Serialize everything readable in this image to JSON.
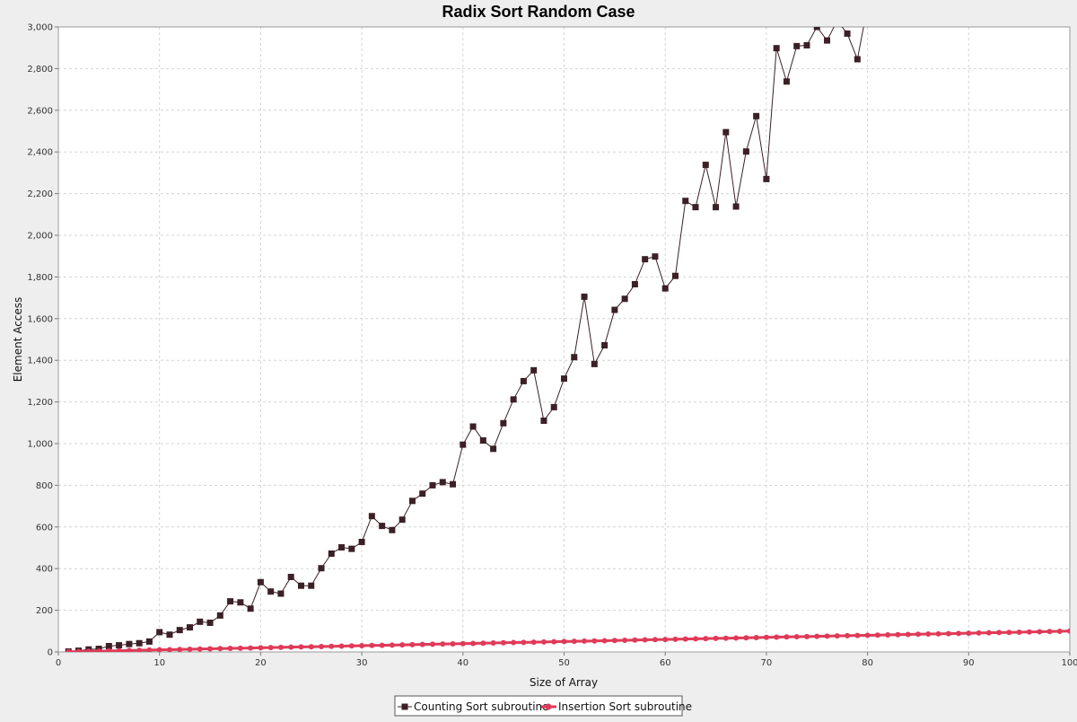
{
  "chart_data": {
    "type": "line",
    "title": "Radix Sort Random Case",
    "xlabel": "Size of Array",
    "ylabel": "Element Access",
    "xlim": [
      0,
      100
    ],
    "ylim": [
      0,
      3000
    ],
    "x_ticks": [
      0,
      10,
      20,
      30,
      40,
      50,
      60,
      70,
      80,
      90,
      100
    ],
    "y_ticks": [
      0,
      200,
      400,
      600,
      800,
      1000,
      1200,
      1400,
      1600,
      1800,
      2000,
      2200,
      2400,
      2600,
      2800,
      3000
    ],
    "y_tick_labels": [
      "0",
      "200",
      "400",
      "600",
      "800",
      "1,000",
      "1,200",
      "1,400",
      "1,600",
      "1,800",
      "2,000",
      "2,200",
      "2,400",
      "2,600",
      "2,800",
      "3,000"
    ],
    "grid": true,
    "legend_position": "bottom",
    "series": [
      {
        "name": "Counting Sort subroutine",
        "color": "#3b2026",
        "marker": "square",
        "x": [
          1,
          2,
          3,
          4,
          5,
          6,
          7,
          8,
          9,
          10,
          11,
          12,
          13,
          14,
          15,
          16,
          17,
          18,
          19,
          20,
          21,
          22,
          23,
          24,
          25,
          26,
          27,
          28,
          29,
          30,
          31,
          32,
          33,
          34,
          35,
          36,
          37,
          38,
          39,
          40,
          41,
          42,
          43,
          44,
          45,
          46,
          47,
          48,
          49,
          50,
          51,
          52,
          53,
          54,
          55,
          56,
          57,
          58,
          59,
          60,
          61,
          62,
          63,
          64,
          65,
          66,
          67,
          68,
          69,
          70,
          71,
          72,
          73,
          74,
          75,
          76,
          77,
          78,
          79,
          80
        ],
        "values": [
          2,
          6,
          12,
          15,
          28,
          32,
          38,
          42,
          50,
          95,
          83,
          105,
          118,
          145,
          140,
          175,
          243,
          238,
          208,
          335,
          290,
          280,
          360,
          318,
          318,
          402,
          472,
          502,
          495,
          528,
          652,
          605,
          585,
          635,
          725,
          760,
          800,
          815,
          805,
          995,
          1082,
          1015,
          975,
          1098,
          1212,
          1300,
          1352,
          1110,
          1175,
          1312,
          1415,
          1705,
          1382,
          1472,
          1642,
          1695,
          1765,
          1885,
          1898,
          1745,
          1805,
          2165,
          2135,
          2338,
          2135,
          2495,
          2138,
          2402,
          2572,
          2270,
          2898,
          2738,
          2908,
          2912,
          3000,
          2935,
          3030,
          2968,
          2845,
          3100
        ]
      },
      {
        "name": "Insertion Sort subroutine",
        "color": "#e03a58",
        "marker": "circle",
        "x": [
          1,
          2,
          3,
          4,
          5,
          6,
          7,
          8,
          9,
          10,
          11,
          12,
          13,
          14,
          15,
          16,
          17,
          18,
          19,
          20,
          21,
          22,
          23,
          24,
          25,
          26,
          27,
          28,
          29,
          30,
          31,
          32,
          33,
          34,
          35,
          36,
          37,
          38,
          39,
          40,
          41,
          42,
          43,
          44,
          45,
          46,
          47,
          48,
          49,
          50,
          51,
          52,
          53,
          54,
          55,
          56,
          57,
          58,
          59,
          60,
          61,
          62,
          63,
          64,
          65,
          66,
          67,
          68,
          69,
          70,
          71,
          72,
          73,
          74,
          75,
          76,
          77,
          78,
          79,
          80,
          81,
          82,
          83,
          84,
          85,
          86,
          87,
          88,
          89,
          90,
          91,
          92,
          93,
          94,
          95,
          96,
          97,
          98,
          99,
          100
        ],
        "values": [
          1,
          2,
          3,
          4,
          5,
          6,
          7,
          8,
          9,
          10,
          11,
          12,
          13,
          14,
          15,
          16,
          17,
          18,
          19,
          20,
          21,
          22,
          23,
          24,
          25,
          26,
          27,
          28,
          29,
          30,
          31,
          32,
          33,
          34,
          35,
          36,
          37,
          38,
          39,
          40,
          41,
          42,
          43,
          44,
          45,
          46,
          47,
          48,
          49,
          50,
          51,
          52,
          53,
          54,
          55,
          56,
          57,
          58,
          59,
          60,
          61,
          62,
          63,
          64,
          65,
          66,
          67,
          68,
          69,
          70,
          71,
          72,
          73,
          74,
          75,
          76,
          77,
          78,
          79,
          80,
          81,
          82,
          83,
          84,
          85,
          86,
          87,
          88,
          89,
          90,
          91,
          92,
          93,
          94,
          95,
          96,
          97,
          98,
          99,
          100
        ]
      }
    ]
  }
}
